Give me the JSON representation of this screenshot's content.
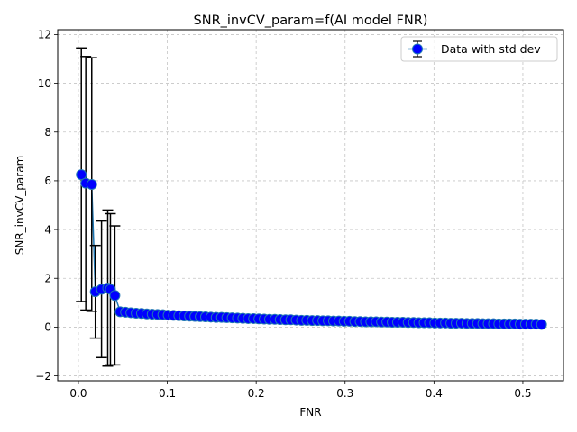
{
  "chart_data": {
    "type": "scatter",
    "title": "SNR_invCV_param=f(AI model FNR)",
    "xlabel": "FNR",
    "ylabel": "SNR_invCV_param",
    "xlim": [
      -0.0233,
      0.5457
    ],
    "ylim": [
      -2.2,
      12.2
    ],
    "xticks": [
      0.0,
      0.1,
      0.2,
      0.3,
      0.4,
      0.5
    ],
    "xtick_labels": [
      "0.0",
      "0.1",
      "0.2",
      "0.3",
      "0.4",
      "0.5"
    ],
    "yticks": [
      -2,
      0,
      2,
      4,
      6,
      8,
      10,
      12
    ],
    "ytick_labels": [
      "−2",
      "0",
      "2",
      "4",
      "6",
      "8",
      "10",
      "12"
    ],
    "grid": true,
    "legend_position": "top-right",
    "colors": {
      "marker_fill": "#0000ff",
      "marker_edge": "#1f77b4",
      "line": "#1f77b4",
      "errorbar": "#000000",
      "grid": "#b0b0b0"
    },
    "series": [
      {
        "name": "Data with std dev",
        "points": [
          {
            "x": 0.0033,
            "y": 6.25,
            "err": 5.2
          },
          {
            "x": 0.0083,
            "y": 5.9,
            "err": 5.2
          },
          {
            "x": 0.015,
            "y": 5.85,
            "err": 5.2
          },
          {
            "x": 0.019,
            "y": 1.45,
            "err": 1.9
          },
          {
            "x": 0.026,
            "y": 1.55,
            "err": 2.8
          },
          {
            "x": 0.033,
            "y": 1.6,
            "err": 3.2
          },
          {
            "x": 0.036,
            "y": 1.55,
            "err": 3.1
          },
          {
            "x": 0.041,
            "y": 1.3,
            "err": 2.85
          },
          {
            "x": 0.047,
            "y": 0.63
          },
          {
            "x": 0.053,
            "y": 0.61
          },
          {
            "x": 0.059,
            "y": 0.59
          },
          {
            "x": 0.065,
            "y": 0.57
          },
          {
            "x": 0.071,
            "y": 0.56
          },
          {
            "x": 0.077,
            "y": 0.54
          },
          {
            "x": 0.083,
            "y": 0.53
          },
          {
            "x": 0.089,
            "y": 0.52
          },
          {
            "x": 0.095,
            "y": 0.51
          },
          {
            "x": 0.101,
            "y": 0.49
          },
          {
            "x": 0.107,
            "y": 0.48
          },
          {
            "x": 0.113,
            "y": 0.47
          },
          {
            "x": 0.119,
            "y": 0.46
          },
          {
            "x": 0.125,
            "y": 0.45
          },
          {
            "x": 0.131,
            "y": 0.44
          },
          {
            "x": 0.137,
            "y": 0.43
          },
          {
            "x": 0.143,
            "y": 0.42
          },
          {
            "x": 0.149,
            "y": 0.41
          },
          {
            "x": 0.155,
            "y": 0.4
          },
          {
            "x": 0.161,
            "y": 0.4
          },
          {
            "x": 0.167,
            "y": 0.39
          },
          {
            "x": 0.173,
            "y": 0.38
          },
          {
            "x": 0.179,
            "y": 0.37
          },
          {
            "x": 0.185,
            "y": 0.36
          },
          {
            "x": 0.191,
            "y": 0.35
          },
          {
            "x": 0.197,
            "y": 0.35
          },
          {
            "x": 0.203,
            "y": 0.34
          },
          {
            "x": 0.209,
            "y": 0.33
          },
          {
            "x": 0.215,
            "y": 0.32
          },
          {
            "x": 0.221,
            "y": 0.32
          },
          {
            "x": 0.227,
            "y": 0.31
          },
          {
            "x": 0.233,
            "y": 0.3
          },
          {
            "x": 0.239,
            "y": 0.3
          },
          {
            "x": 0.245,
            "y": 0.29
          },
          {
            "x": 0.251,
            "y": 0.28
          },
          {
            "x": 0.257,
            "y": 0.28
          },
          {
            "x": 0.263,
            "y": 0.27
          },
          {
            "x": 0.269,
            "y": 0.27
          },
          {
            "x": 0.275,
            "y": 0.26
          },
          {
            "x": 0.281,
            "y": 0.26
          },
          {
            "x": 0.287,
            "y": 0.25
          },
          {
            "x": 0.293,
            "y": 0.25
          },
          {
            "x": 0.299,
            "y": 0.24
          },
          {
            "x": 0.305,
            "y": 0.24
          },
          {
            "x": 0.311,
            "y": 0.23
          },
          {
            "x": 0.317,
            "y": 0.23
          },
          {
            "x": 0.323,
            "y": 0.22
          },
          {
            "x": 0.329,
            "y": 0.22
          },
          {
            "x": 0.335,
            "y": 0.22
          },
          {
            "x": 0.341,
            "y": 0.21
          },
          {
            "x": 0.347,
            "y": 0.21
          },
          {
            "x": 0.353,
            "y": 0.2
          },
          {
            "x": 0.359,
            "y": 0.2
          },
          {
            "x": 0.365,
            "y": 0.2
          },
          {
            "x": 0.371,
            "y": 0.19
          },
          {
            "x": 0.377,
            "y": 0.19
          },
          {
            "x": 0.383,
            "y": 0.18
          },
          {
            "x": 0.389,
            "y": 0.18
          },
          {
            "x": 0.395,
            "y": 0.18
          },
          {
            "x": 0.401,
            "y": 0.17
          },
          {
            "x": 0.407,
            "y": 0.17
          },
          {
            "x": 0.413,
            "y": 0.17
          },
          {
            "x": 0.419,
            "y": 0.16
          },
          {
            "x": 0.425,
            "y": 0.16
          },
          {
            "x": 0.431,
            "y": 0.16
          },
          {
            "x": 0.437,
            "y": 0.15
          },
          {
            "x": 0.443,
            "y": 0.15
          },
          {
            "x": 0.449,
            "y": 0.15
          },
          {
            "x": 0.455,
            "y": 0.14
          },
          {
            "x": 0.461,
            "y": 0.14
          },
          {
            "x": 0.467,
            "y": 0.14
          },
          {
            "x": 0.473,
            "y": 0.13
          },
          {
            "x": 0.479,
            "y": 0.13
          },
          {
            "x": 0.485,
            "y": 0.13
          },
          {
            "x": 0.491,
            "y": 0.13
          },
          {
            "x": 0.497,
            "y": 0.12
          },
          {
            "x": 0.503,
            "y": 0.12
          },
          {
            "x": 0.509,
            "y": 0.12
          },
          {
            "x": 0.515,
            "y": 0.12
          },
          {
            "x": 0.521,
            "y": 0.11
          }
        ]
      }
    ]
  }
}
